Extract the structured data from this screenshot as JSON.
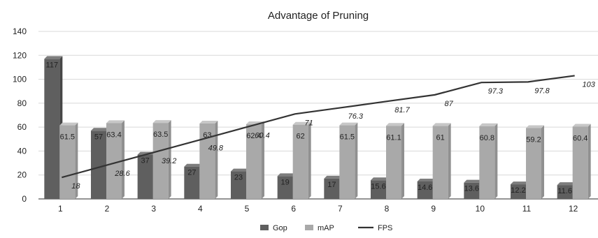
{
  "chart_data": {
    "type": "bar",
    "title": "Advantage of Pruning",
    "categories": [
      "1",
      "2",
      "3",
      "4",
      "5",
      "6",
      "7",
      "8",
      "9",
      "10",
      "11",
      "12"
    ],
    "series": [
      {
        "name": "Gop",
        "kind": "bar",
        "color": "#5f5f5f",
        "values": [
          117,
          57,
          37,
          27,
          23,
          19,
          17,
          15.6,
          14.6,
          13.6,
          12.2,
          11.6
        ]
      },
      {
        "name": "mAP",
        "kind": "bar",
        "color": "#a9a9a9",
        "values": [
          61.5,
          63.4,
          63.5,
          63,
          62.4,
          62,
          61.5,
          61.1,
          61,
          60.8,
          59.2,
          60.4
        ]
      },
      {
        "name": "FPS",
        "kind": "line",
        "color": "#333333",
        "values": [
          18,
          28.6,
          39.2,
          49.8,
          60.4,
          71,
          76.3,
          81.7,
          87,
          97.3,
          97.8,
          103
        ]
      }
    ],
    "ylim": [
      0,
      140
    ],
    "yticks": [
      "0",
      "20",
      "40",
      "60",
      "80",
      "100",
      "120",
      "140"
    ],
    "grid": "horizontal",
    "legend_position": "bottom"
  }
}
